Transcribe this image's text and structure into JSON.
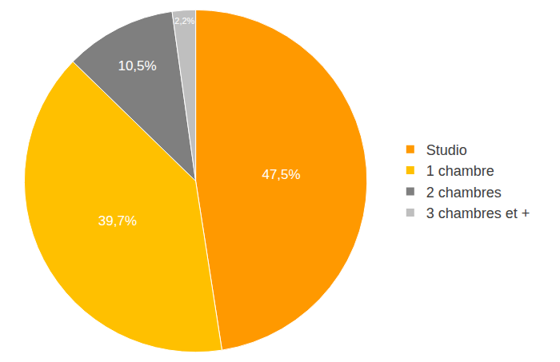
{
  "chart_data": {
    "type": "pie",
    "categories": [
      "Studio",
      "1 chambre",
      "2 chambres",
      "3 chambres et +"
    ],
    "values": [
      47.5,
      39.7,
      10.5,
      2.2
    ],
    "value_labels": [
      "47,5%",
      "39,7%",
      "10,5%",
      "2,2%"
    ],
    "colors": [
      "#ff9900",
      "#ffc000",
      "#7f7f7f",
      "#bfbfbf"
    ],
    "data_labels": true,
    "legend": "right"
  }
}
